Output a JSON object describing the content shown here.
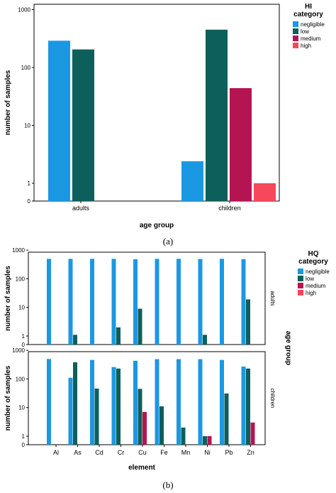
{
  "colors": {
    "negligible": "#1C98E3",
    "low": "#0D5F5C",
    "medium": "#B51453",
    "high": "#F5485A",
    "axis": "#000000"
  },
  "chart_data": [
    {
      "type": "bar",
      "title": "",
      "xlabel": "age group",
      "ylabel": "number of samples",
      "yscale": "log-like (0,1,10,100,1000)",
      "yticks": [
        "0",
        "1",
        "10",
        "100",
        "1000"
      ],
      "categories": [
        "adults",
        "children"
      ],
      "legend": {
        "title": "HI category",
        "position": "top-right",
        "entries": [
          "negligible",
          "low",
          "medium",
          "high"
        ]
      },
      "series": [
        {
          "name": "negligible",
          "values": [
            290,
            2.4
          ]
        },
        {
          "name": "low",
          "values": [
            205,
            450
          ]
        },
        {
          "name": "medium",
          "values": [
            0,
            44
          ]
        },
        {
          "name": "high",
          "values": [
            0,
            1
          ]
        }
      ],
      "caption": "(a)"
    },
    {
      "type": "bar",
      "title": "",
      "xlabel": "element",
      "ylabel": "number of samples",
      "panel_label": "age group",
      "yticks": [
        "0",
        "1",
        "10",
        "100",
        "1000"
      ],
      "categories": [
        "Al",
        "As",
        "Cd",
        "Cr",
        "Cu",
        "Fe",
        "Mn",
        "Ni",
        "Pb",
        "Zn"
      ],
      "legend": {
        "title": "HQ category",
        "position": "top-right",
        "entries": [
          "negligible",
          "low",
          "medium",
          "high"
        ]
      },
      "panels": [
        {
          "label": "adults",
          "series": [
            {
              "name": "negligible",
              "values": [
                497,
                497,
                497,
                497,
                480,
                497,
                497,
                490,
                497,
                480
              ]
            },
            {
              "name": "low",
              "values": [
                0,
                1.1,
                0,
                2,
                9,
                0,
                0,
                1.1,
                0,
                19
              ]
            },
            {
              "name": "medium",
              "values": [
                0,
                0,
                0,
                0,
                0,
                0,
                0,
                0,
                0,
                0
              ]
            },
            {
              "name": "high",
              "values": [
                0,
                0,
                0,
                0,
                0,
                0,
                0,
                0,
                0,
                0
              ]
            }
          ]
        },
        {
          "label": "children",
          "series": [
            {
              "name": "negligible",
              "values": [
                497,
                110,
                460,
                260,
                430,
                490,
                490,
                490,
                460,
                270
              ]
            },
            {
              "name": "low",
              "values": [
                0,
                380,
                46,
                230,
                45,
                11,
                2,
                1,
                31,
                230
              ]
            },
            {
              "name": "medium",
              "values": [
                0,
                0,
                0,
                0,
                7,
                0,
                0,
                1,
                0,
                3
              ]
            },
            {
              "name": "high",
              "values": [
                0,
                0,
                0,
                0,
                0,
                0,
                0,
                0,
                0,
                0
              ]
            }
          ]
        }
      ],
      "caption": "(b)"
    }
  ]
}
